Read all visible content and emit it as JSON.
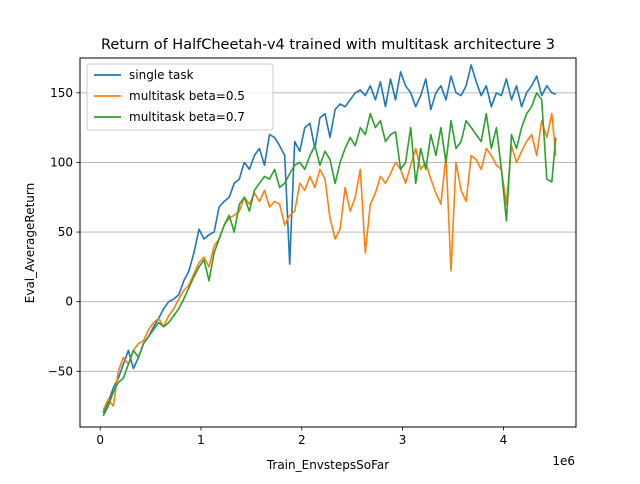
{
  "chart_data": {
    "type": "line",
    "title": "Return of HalfCheetah-v4 trained with multitask architecture 3",
    "xlabel": "Train_EnvstepsSoFar",
    "ylabel": "Eval_AverageReturn",
    "x_offset_label": "1e6",
    "xlim": [
      -0.2,
      4.72
    ],
    "ylim": [
      -90,
      175
    ],
    "xticks": [
      0,
      1,
      2,
      3,
      4
    ],
    "xtick_labels": [
      "0",
      "1",
      "2",
      "3",
      "4"
    ],
    "yticks": [
      -50,
      0,
      50,
      100,
      150
    ],
    "ytick_labels": [
      "−50",
      "0",
      "50",
      "100",
      "150"
    ],
    "grid": "y-only",
    "legend_position": "upper-left",
    "series": [
      {
        "name": "single task",
        "color": "#1f77b4",
        "x": [
          0.03,
          0.08,
          0.13,
          0.18,
          0.23,
          0.28,
          0.33,
          0.38,
          0.43,
          0.48,
          0.53,
          0.58,
          0.63,
          0.68,
          0.73,
          0.78,
          0.83,
          0.88,
          0.93,
          0.98,
          1.03,
          1.08,
          1.13,
          1.18,
          1.23,
          1.28,
          1.33,
          1.38,
          1.43,
          1.48,
          1.53,
          1.58,
          1.63,
          1.68,
          1.73,
          1.78,
          1.83,
          1.88,
          1.93,
          1.98,
          2.03,
          2.08,
          2.13,
          2.18,
          2.23,
          2.28,
          2.33,
          2.38,
          2.43,
          2.48,
          2.53,
          2.58,
          2.63,
          2.68,
          2.73,
          2.78,
          2.83,
          2.88,
          2.93,
          2.98,
          3.03,
          3.08,
          3.13,
          3.18,
          3.23,
          3.28,
          3.33,
          3.38,
          3.43,
          3.48,
          3.53,
          3.58,
          3.63,
          3.68,
          3.73,
          3.78,
          3.83,
          3.88,
          3.93,
          3.98,
          4.03,
          4.08,
          4.13,
          4.18,
          4.23,
          4.28,
          4.33,
          4.38,
          4.43,
          4.48,
          4.52
        ],
        "y": [
          -80,
          -72,
          -62,
          -55,
          -45,
          -35,
          -48,
          -40,
          -30,
          -25,
          -18,
          -12,
          -5,
          0,
          2,
          5,
          15,
          22,
          35,
          52,
          45,
          48,
          50,
          68,
          72,
          75,
          85,
          88,
          100,
          95,
          105,
          110,
          98,
          120,
          118,
          112,
          105,
          27,
          115,
          108,
          125,
          128,
          110,
          132,
          135,
          118,
          138,
          142,
          140,
          145,
          150,
          152,
          148,
          155,
          145,
          158,
          140,
          160,
          145,
          165,
          155,
          150,
          140,
          148,
          160,
          138,
          150,
          155,
          145,
          162,
          150,
          148,
          155,
          170,
          158,
          148,
          155,
          140,
          150,
          148,
          160,
          145,
          155,
          140,
          150,
          155,
          162,
          148,
          155,
          150,
          149
        ]
      },
      {
        "name": "multitask beta=0.5",
        "color": "#ff7f0e",
        "x": [
          0.03,
          0.08,
          0.13,
          0.18,
          0.23,
          0.28,
          0.33,
          0.38,
          0.43,
          0.48,
          0.53,
          0.58,
          0.63,
          0.68,
          0.73,
          0.78,
          0.83,
          0.88,
          0.93,
          0.98,
          1.03,
          1.08,
          1.13,
          1.18,
          1.23,
          1.28,
          1.33,
          1.38,
          1.43,
          1.48,
          1.53,
          1.58,
          1.63,
          1.68,
          1.73,
          1.78,
          1.83,
          1.88,
          1.93,
          1.98,
          2.03,
          2.08,
          2.13,
          2.18,
          2.23,
          2.28,
          2.33,
          2.38,
          2.43,
          2.48,
          2.53,
          2.58,
          2.63,
          2.68,
          2.73,
          2.78,
          2.83,
          2.88,
          2.93,
          2.98,
          3.03,
          3.08,
          3.13,
          3.18,
          3.23,
          3.28,
          3.33,
          3.38,
          3.43,
          3.48,
          3.53,
          3.58,
          3.63,
          3.68,
          3.73,
          3.78,
          3.83,
          3.88,
          3.93,
          3.98,
          4.03,
          4.08,
          4.13,
          4.18,
          4.23,
          4.28,
          4.33,
          4.38,
          4.43,
          4.48,
          4.52
        ],
        "y": [
          -78,
          -70,
          -75,
          -50,
          -40,
          -45,
          -35,
          -30,
          -28,
          -20,
          -15,
          -12,
          -18,
          -10,
          -5,
          2,
          8,
          12,
          20,
          28,
          32,
          25,
          40,
          45,
          55,
          60,
          62,
          65,
          75,
          70,
          78,
          72,
          80,
          68,
          72,
          70,
          55,
          62,
          65,
          85,
          80,
          90,
          82,
          95,
          88,
          60,
          45,
          52,
          82,
          65,
          75,
          95,
          35,
          70,
          78,
          90,
          85,
          92,
          100,
          95,
          85,
          98,
          110,
          95,
          100,
          88,
          78,
          70,
          105,
          22,
          100,
          80,
          72,
          105,
          102,
          95,
          110,
          105,
          98,
          95,
          70,
          112,
          100,
          108,
          115,
          120,
          105,
          130,
          118,
          135,
          105
        ]
      },
      {
        "name": "multitask beta=0.7",
        "color": "#2ca02c",
        "x": [
          0.03,
          0.08,
          0.13,
          0.18,
          0.23,
          0.28,
          0.33,
          0.38,
          0.43,
          0.48,
          0.53,
          0.58,
          0.63,
          0.68,
          0.73,
          0.78,
          0.83,
          0.88,
          0.93,
          0.98,
          1.03,
          1.08,
          1.13,
          1.18,
          1.23,
          1.28,
          1.33,
          1.38,
          1.43,
          1.48,
          1.53,
          1.58,
          1.63,
          1.68,
          1.73,
          1.78,
          1.83,
          1.88,
          1.93,
          1.98,
          2.03,
          2.08,
          2.13,
          2.18,
          2.23,
          2.28,
          2.33,
          2.38,
          2.43,
          2.48,
          2.53,
          2.58,
          2.63,
          2.68,
          2.73,
          2.78,
          2.83,
          2.88,
          2.93,
          2.98,
          3.03,
          3.08,
          3.13,
          3.18,
          3.23,
          3.28,
          3.33,
          3.38,
          3.43,
          3.48,
          3.53,
          3.58,
          3.63,
          3.68,
          3.73,
          3.78,
          3.83,
          3.88,
          3.93,
          3.98,
          4.03,
          4.08,
          4.13,
          4.18,
          4.23,
          4.28,
          4.33,
          4.38,
          4.43,
          4.48,
          4.52
        ],
        "y": [
          -82,
          -75,
          -65,
          -58,
          -55,
          -45,
          -35,
          -40,
          -30,
          -25,
          -20,
          -15,
          -18,
          -15,
          -10,
          -5,
          2,
          10,
          18,
          25,
          30,
          15,
          35,
          45,
          55,
          62,
          50,
          70,
          75,
          65,
          80,
          85,
          90,
          88,
          95,
          82,
          85,
          92,
          98,
          100,
          95,
          105,
          112,
          98,
          108,
          102,
          85,
          100,
          110,
          118,
          112,
          125,
          120,
          135,
          125,
          130,
          115,
          120,
          122,
          95,
          100,
          125,
          85,
          110,
          95,
          120,
          105,
          125,
          100,
          130,
          110,
          115,
          130,
          125,
          120,
          115,
          135,
          110,
          125,
          95,
          58,
          120,
          110,
          125,
          135,
          140,
          150,
          145,
          88,
          86,
          118
        ]
      }
    ]
  }
}
